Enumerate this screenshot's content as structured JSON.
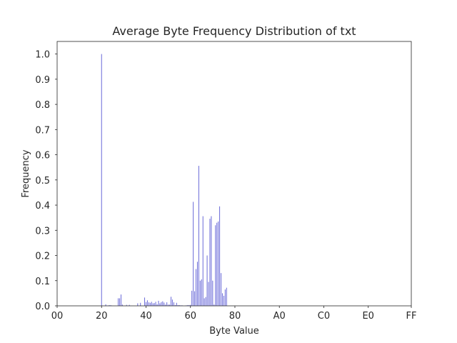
{
  "chart_data": {
    "type": "bar",
    "title": "Average Byte Frequency Distribution of txt",
    "xlabel": "Byte Value",
    "ylabel": "Frequency",
    "xlim": [
      0,
      255
    ],
    "ylim": [
      0,
      1.05
    ],
    "xticks": [
      {
        "value": 0,
        "label": "00"
      },
      {
        "value": 32,
        "label": "20"
      },
      {
        "value": 64,
        "label": "40"
      },
      {
        "value": 96,
        "label": "60"
      },
      {
        "value": 128,
        "label": "80"
      },
      {
        "value": 160,
        "label": "A0"
      },
      {
        "value": 192,
        "label": "C0"
      },
      {
        "value": 224,
        "label": "E0"
      },
      {
        "value": 255,
        "label": "FF"
      }
    ],
    "yticks": [
      {
        "value": 0.0,
        "label": "0.0"
      },
      {
        "value": 0.1,
        "label": "0.1"
      },
      {
        "value": 0.2,
        "label": "0.2"
      },
      {
        "value": 0.3,
        "label": "0.3"
      },
      {
        "value": 0.4,
        "label": "0.4"
      },
      {
        "value": 0.5,
        "label": "0.5"
      },
      {
        "value": 0.6,
        "label": "0.6"
      },
      {
        "value": 0.7,
        "label": "0.7"
      },
      {
        "value": 0.8,
        "label": "0.8"
      },
      {
        "value": 0.9,
        "label": "0.9"
      },
      {
        "value": 1.0,
        "label": "1.0"
      }
    ],
    "grid": false,
    "bar_color": "#6a6ad8",
    "x": [
      32,
      35,
      37,
      38,
      39,
      44,
      45,
      46,
      47,
      50,
      52,
      58,
      60,
      63,
      64,
      65,
      66,
      67,
      68,
      69,
      70,
      71,
      72,
      73,
      74,
      75,
      76,
      77,
      78,
      79,
      80,
      81,
      82,
      83,
      84,
      85,
      86,
      87,
      88,
      89,
      90,
      93,
      94,
      95,
      96,
      97,
      98,
      99,
      100,
      101,
      102,
      103,
      104,
      105,
      106,
      107,
      108,
      109,
      110,
      111,
      112,
      113,
      114,
      115,
      116,
      117,
      118,
      119,
      120,
      121,
      122
    ],
    "values": [
      1.0,
      0.006,
      0.002,
      0.003,
      0.002,
      0.03,
      0.03,
      0.045,
      0.005,
      0.004,
      0.004,
      0.01,
      0.012,
      0.033,
      0.015,
      0.022,
      0.014,
      0.012,
      0.016,
      0.01,
      0.011,
      0.016,
      0.006,
      0.02,
      0.01,
      0.015,
      0.018,
      0.013,
      0.005,
      0.014,
      0.005,
      0.005,
      0.036,
      0.025,
      0.014,
      0.003,
      0.012,
      0.003,
      0.003,
      0.002,
      0.002,
      0.002,
      0.003,
      0.003,
      0.004,
      0.06,
      0.413,
      0.058,
      0.146,
      0.175,
      0.556,
      0.1,
      0.105,
      0.356,
      0.03,
      0.035,
      0.2,
      0.095,
      0.346,
      0.356,
      0.1,
      0.005,
      0.32,
      0.33,
      0.335,
      0.395,
      0.13,
      0.05,
      0.04,
      0.065,
      0.072
    ]
  }
}
